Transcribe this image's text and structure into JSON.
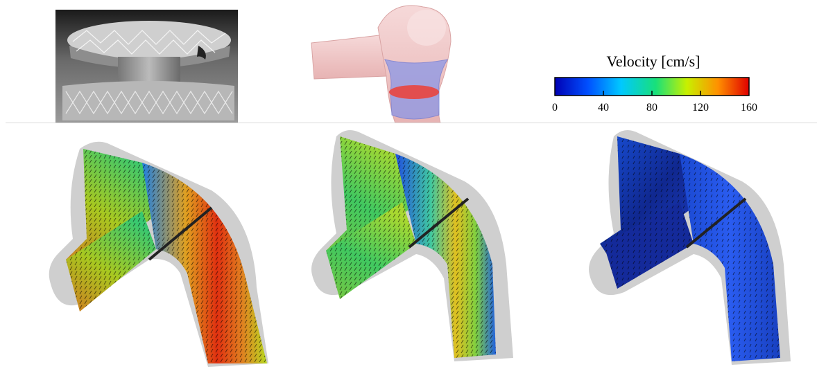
{
  "legend": {
    "title": "Velocity [cm/s]",
    "ticks": [
      "0",
      "40",
      "80",
      "120",
      "160"
    ],
    "min": 0,
    "max": 160,
    "colormap": [
      "#0000b4",
      "#0050ff",
      "#00c8ff",
      "#18e07a",
      "#c8f000",
      "#ff9000",
      "#e00000"
    ]
  },
  "panels": [
    {
      "kind": "photo",
      "description_icon": "stent-graft-photo"
    },
    {
      "kind": "geometry",
      "description_icon": "aorta-geometry-model"
    },
    {
      "kind": "colorbar"
    },
    {
      "kind": "flow-field",
      "level": "high"
    },
    {
      "kind": "flow-field",
      "level": "medium"
    },
    {
      "kind": "flow-field",
      "level": "low"
    }
  ],
  "colors": {
    "vessel_shell": "#cfcfcf",
    "geometry_body": "#f2c9c9",
    "valve_blue": "#7f8fe0",
    "valve_red": "#e04a4a",
    "vector_arrows": "#000000"
  }
}
